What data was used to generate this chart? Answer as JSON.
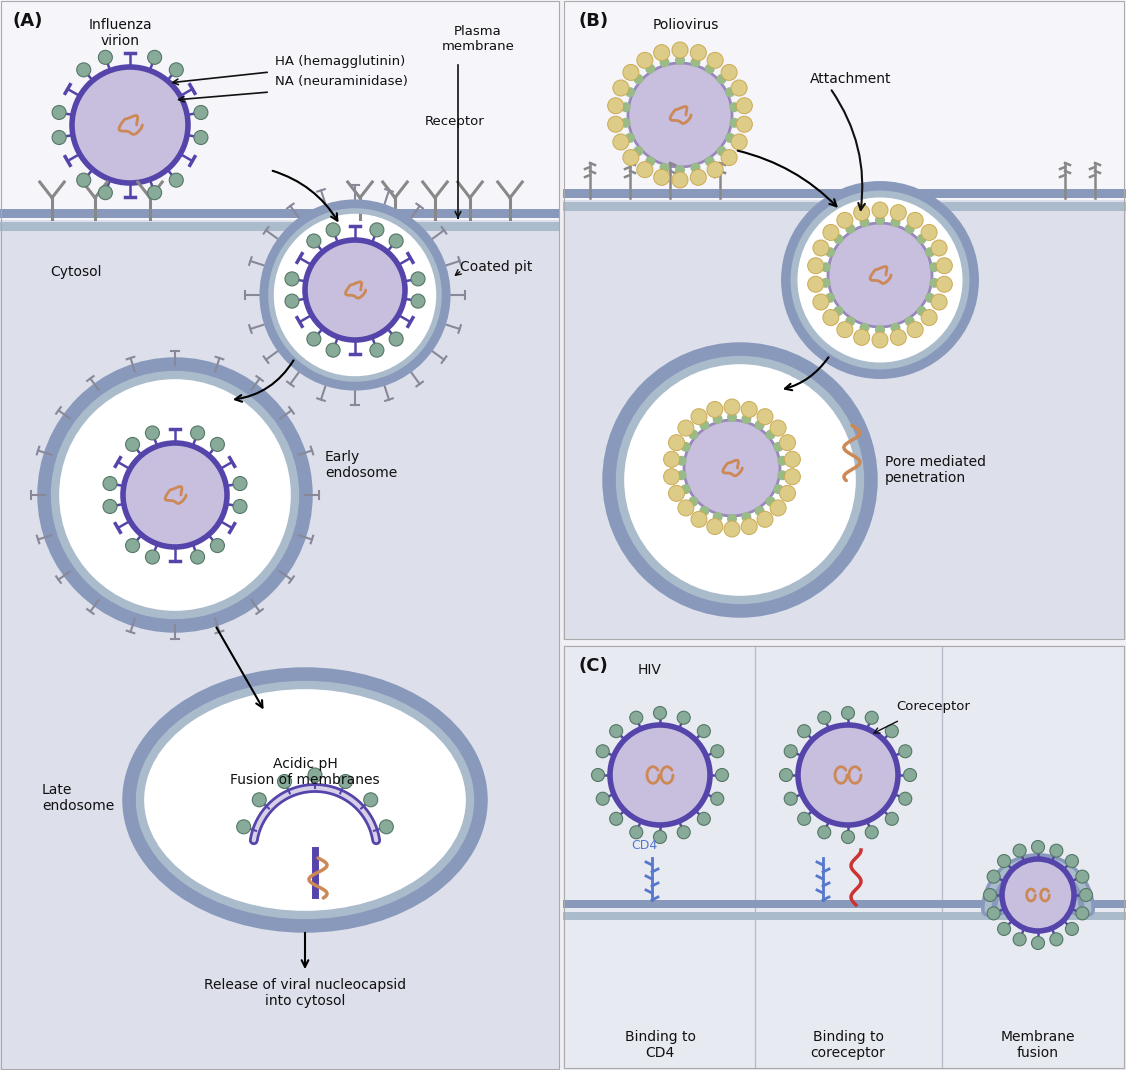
{
  "bg_color": "#f0f0f5",
  "panel_A_bg": "#dde0ea",
  "panel_B_bg": "#dde0ea",
  "panel_C_bg": "#e8eaf2",
  "extracellular_bg": "#f5f5fa",
  "mem_outer": "#8899bb",
  "mem_inner": "#aabbcc",
  "virus_envelope": "#5544aa",
  "virus_envelope_light": "#7766bb",
  "virus_body": "#c8bedd",
  "virus_body_light": "#d8d0e8",
  "nuc_color": "#cc8855",
  "spike_green": "#88aa99",
  "spike_yellow": "#ddcc88",
  "spike_green_light": "#aaccaa",
  "clathrin_color": "#888899",
  "text_color": "#111111",
  "arrow_color": "#111111",
  "receptor_color": "#888888",
  "cd4_color": "#5577cc",
  "coreceptor_color": "#cc3333",
  "white": "#ffffff",
  "panel_labels": [
    "(A)",
    "(B)",
    "(C)"
  ],
  "labels_A": {
    "influenza_virion": "Influenza\nvirion",
    "HA": "HA (hemagglutinin)",
    "NA": "NA (neuraminidase)",
    "plasma_membrane": "Plasma\nmembrane",
    "receptor": "Receptor",
    "cytosol": "Cytosol",
    "coated_pit": "Coated pit",
    "early_endosome": "Early\nendosome",
    "late_endosome": "Late\nendosome",
    "acidic_pH": "Acidic pH\nFusion of membranes",
    "release": "Release of viral nucleocapsid\ninto cytosol"
  },
  "labels_B": {
    "poliovirus": "Poliovirus",
    "attachment": "Attachment",
    "pore_mediated": "Pore mediated\npenetration"
  },
  "labels_C": {
    "HIV": "HIV",
    "coreceptor": "Coreceptor",
    "CD4": "CD4",
    "binding_CD4": "Binding to\nCD4",
    "binding_coreceptor": "Binding to\ncoreceptor",
    "membrane_fusion": "Membrane\nfusion"
  }
}
